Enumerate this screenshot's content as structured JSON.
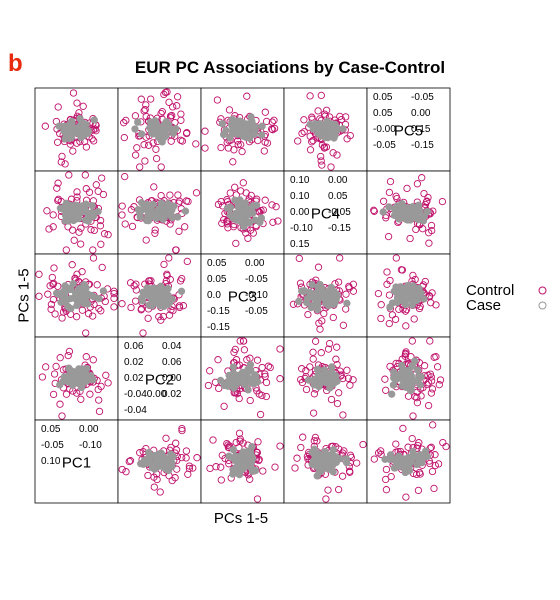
{
  "panel_letter": "b",
  "chart_data": {
    "type": "scatter",
    "title": "EUR PC Associations by Case-Control",
    "xlabel": "PCs 1-5",
    "ylabel": "PCs 1-5",
    "variables": [
      "PC1",
      "PC2",
      "PC3",
      "PC4",
      "PC5"
    ],
    "diagonal_ticks": [
      [
        "0.05",
        "0.00",
        "-0.05",
        "-0.10",
        "0.10"
      ],
      [
        "0.06",
        "0.04",
        "0.02",
        "0.06",
        "0.02",
        "0.00",
        "-0.040.00",
        "0.02",
        "-0.04"
      ],
      [
        "0.05",
        "0.00",
        "0.05",
        "-0.05",
        "0.0",
        "-0.10",
        "-0.15",
        "-0.05",
        "-0.15"
      ],
      [
        "0.10",
        "0.00",
        "0.10",
        "0.05",
        "0.00",
        "-0.05",
        "-0.10",
        "-0.15",
        "0.15"
      ],
      [
        "0.05",
        "-0.05",
        "0.05",
        "0.00",
        "-0.00",
        "0.15",
        "-0.05",
        "-0.15"
      ]
    ],
    "series": [
      {
        "name": "Control",
        "color": "#c0116b",
        "marker": "open-circle"
      },
      {
        "name": "Case",
        "color": "#999999",
        "marker": "open-circle"
      }
    ],
    "grid": false,
    "legend_position": "right"
  }
}
